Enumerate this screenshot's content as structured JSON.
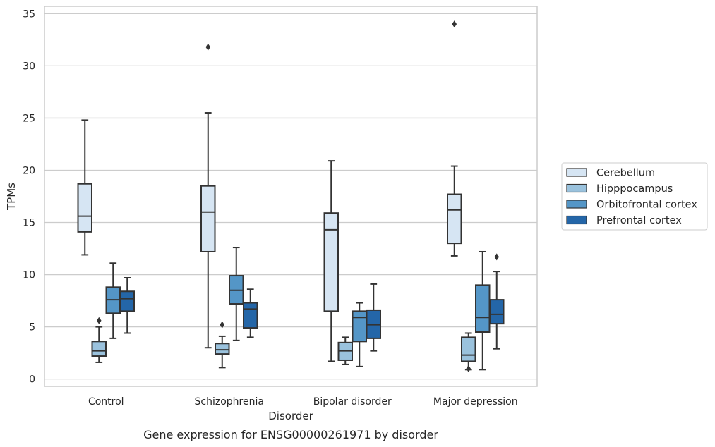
{
  "chart_data": {
    "type": "box",
    "caption": "Gene expression for ENSG00000261971 by disorder",
    "xlabel": "Disorder",
    "ylabel": "TPMs",
    "ylim": [
      -0.7,
      35.7
    ],
    "yticks": [
      0,
      5,
      10,
      15,
      20,
      25,
      30,
      35
    ],
    "grid": true,
    "legend_position": "right",
    "categories": [
      "Control",
      "Schizophrenia",
      "Bipolar disorder",
      "Major depression"
    ],
    "series": [
      {
        "name": "Cerebellum",
        "color": "#d6e5f3",
        "boxes": [
          {
            "whislo": 11.9,
            "q1": 14.1,
            "med": 15.6,
            "q3": 18.7,
            "whishi": 24.8,
            "fliers": []
          },
          {
            "whislo": 3.0,
            "q1": 12.2,
            "med": 16.0,
            "q3": 18.5,
            "whishi": 25.5,
            "fliers": [
              31.8
            ]
          },
          {
            "whislo": 1.7,
            "q1": 6.5,
            "med": 14.3,
            "q3": 15.9,
            "whishi": 20.9,
            "fliers": []
          },
          {
            "whislo": 11.8,
            "q1": 13.0,
            "med": 16.2,
            "q3": 17.7,
            "whishi": 20.4,
            "fliers": [
              34.0
            ]
          }
        ]
      },
      {
        "name": "Hipppocampus",
        "color": "#9ac2dd",
        "boxes": [
          {
            "whislo": 1.6,
            "q1": 2.2,
            "med": 2.7,
            "q3": 3.6,
            "whishi": 5.0,
            "fliers": [
              5.6
            ]
          },
          {
            "whislo": 1.1,
            "q1": 2.4,
            "med": 2.8,
            "q3": 3.4,
            "whishi": 4.1,
            "fliers": [
              5.2
            ]
          },
          {
            "whislo": 1.4,
            "q1": 1.8,
            "med": 2.7,
            "q3": 3.5,
            "whishi": 4.0,
            "fliers": []
          },
          {
            "whislo": 0.9,
            "q1": 1.7,
            "med": 2.3,
            "q3": 4.0,
            "whishi": 4.4,
            "fliers": [
              1.0
            ]
          }
        ]
      },
      {
        "name": "Orbitofrontal cortex",
        "color": "#5496c7",
        "boxes": [
          {
            "whislo": 3.9,
            "q1": 6.3,
            "med": 7.6,
            "q3": 8.8,
            "whishi": 11.1,
            "fliers": []
          },
          {
            "whislo": 3.7,
            "q1": 7.2,
            "med": 8.5,
            "q3": 9.9,
            "whishi": 12.6,
            "fliers": []
          },
          {
            "whislo": 1.2,
            "q1": 3.6,
            "med": 5.9,
            "q3": 6.5,
            "whishi": 7.3,
            "fliers": []
          },
          {
            "whislo": 0.9,
            "q1": 4.5,
            "med": 5.9,
            "q3": 9.0,
            "whishi": 12.2,
            "fliers": []
          }
        ]
      },
      {
        "name": "Prefrontal cortex",
        "color": "#2466a8",
        "boxes": [
          {
            "whislo": 4.4,
            "q1": 6.5,
            "med": 7.7,
            "q3": 8.4,
            "whishi": 9.7,
            "fliers": []
          },
          {
            "whislo": 4.0,
            "q1": 4.9,
            "med": 6.7,
            "q3": 7.3,
            "whishi": 8.6,
            "fliers": []
          },
          {
            "whislo": 2.7,
            "q1": 3.9,
            "med": 5.2,
            "q3": 6.6,
            "whishi": 9.1,
            "fliers": []
          },
          {
            "whislo": 2.9,
            "q1": 5.3,
            "med": 6.2,
            "q3": 7.6,
            "whishi": 10.3,
            "fliers": [
              11.7
            ]
          }
        ]
      }
    ]
  }
}
